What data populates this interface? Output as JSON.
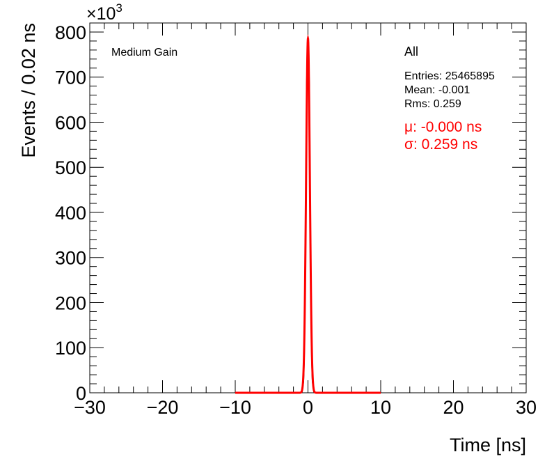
{
  "chart_data": {
    "type": "line",
    "title": "",
    "xlabel": "Time [ns]",
    "ylabel": "Events / 0.02 ns",
    "y_multiplier_label": "×10",
    "y_multiplier_exponent": "3",
    "xlim": [
      -30,
      30
    ],
    "ylim": [
      0,
      820
    ],
    "x_ticks": [
      -30,
      -20,
      -10,
      0,
      10,
      20,
      30
    ],
    "x_tick_labels": [
      "−30",
      "−20",
      "−10",
      "0",
      "10",
      "20",
      "30"
    ],
    "y_ticks": [
      0,
      100,
      200,
      300,
      400,
      500,
      600,
      700,
      800
    ],
    "y_tick_labels": [
      "0",
      "100",
      "200",
      "300",
      "400",
      "500",
      "600",
      "700",
      "800"
    ],
    "grid": false,
    "legend_placement": "top-right",
    "annotations": {
      "gain_label": "Medium Gain",
      "stats_title": "All",
      "entries": "Entries: 25465895",
      "mean": "Mean: -0.001",
      "rms": "Rms: 0.259",
      "fit_mu": "μ: -0.000 ns",
      "fit_sigma": "σ: 0.259 ns"
    },
    "series": [
      {
        "kind": "histogram",
        "color": "#000000",
        "x": [
          -1.0,
          -0.8,
          -0.6,
          -0.5,
          -0.4,
          -0.3,
          -0.2,
          -0.1,
          -0.05,
          0.0,
          0.05,
          0.1,
          0.2,
          0.3,
          0.4,
          0.5,
          0.6,
          0.8,
          1.0
        ],
        "y": [
          0,
          2,
          25,
          80,
          210,
          425,
          670,
          770,
          785,
          790,
          785,
          770,
          670,
          425,
          210,
          80,
          25,
          2,
          0
        ]
      },
      {
        "kind": "gaussian-fit",
        "color": "#ff0000",
        "range": [
          -10,
          10
        ],
        "mu": 0.0,
        "sigma": 0.259,
        "amplitude": 786
      }
    ]
  }
}
